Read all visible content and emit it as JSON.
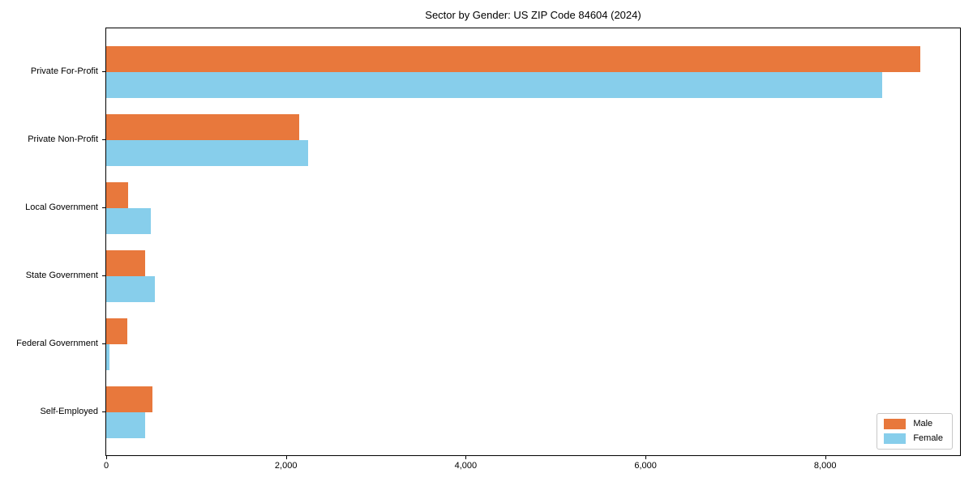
{
  "figure": {
    "background": "#ffffff",
    "axis_color": "#000000",
    "text_color": "#000000"
  },
  "chart_data": {
    "type": "bar",
    "orientation": "horizontal",
    "title": "Sector by Gender: US ZIP Code 84604 (2024)",
    "categories": [
      "Private For-Profit",
      "Private Non-Profit",
      "Local Government",
      "State Government",
      "Federal Government",
      "Self-Employed"
    ],
    "series": [
      {
        "name": "Male",
        "color": "#E8783C",
        "values": [
          9060,
          2150,
          240,
          430,
          230,
          510
        ]
      },
      {
        "name": "Female",
        "color": "#87CEEB",
        "values": [
          8630,
          2250,
          500,
          540,
          35,
          430
        ]
      }
    ],
    "xlabel": "",
    "ylabel": "",
    "xlim": [
      0,
      9500
    ],
    "xticks": [
      0,
      2000,
      4000,
      6000,
      8000
    ],
    "xtick_labels": [
      "0",
      "2,000",
      "4,000",
      "6,000",
      "8,000"
    ],
    "grid": false,
    "legend_position": "lower right"
  }
}
